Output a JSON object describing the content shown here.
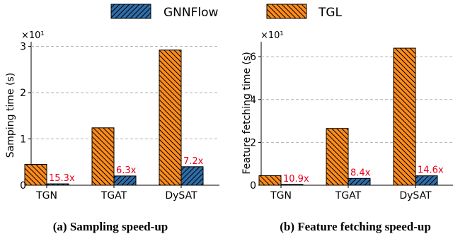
{
  "legend": [
    {
      "name": "GNNFlow",
      "color": "#2f6ea9",
      "hatch": "forward"
    },
    {
      "name": "TGL",
      "color": "#ff8c1a",
      "hatch": "back"
    }
  ],
  "chart_data": [
    {
      "type": "bar",
      "categories": [
        "TGN",
        "TGAT",
        "DySAT"
      ],
      "series": [
        {
          "name": "TGL",
          "values": [
            0.45,
            1.24,
            2.92
          ]
        },
        {
          "name": "GNNFlow",
          "values": [
            0.03,
            0.2,
            0.4
          ]
        }
      ],
      "annotations": [
        "15.3x",
        "6.3x",
        "7.2x"
      ],
      "annotation_color": "#e8001c",
      "ylabel": "Samping time (s)",
      "yticks": [
        0,
        1,
        2,
        3
      ],
      "multiplier": "×10¹",
      "ylim": [
        0,
        3.1
      ],
      "grid": "y-dashed",
      "caption": "(a) Sampling speed-up"
    },
    {
      "type": "bar",
      "categories": [
        "TGN",
        "TGAT",
        "DySAT"
      ],
      "series": [
        {
          "name": "TGL",
          "values": [
            0.45,
            2.65,
            6.4
          ]
        },
        {
          "name": "GNNFlow",
          "values": [
            0.04,
            0.32,
            0.44
          ]
        }
      ],
      "annotations": [
        "10.9x",
        "8.4x",
        "14.6x"
      ],
      "annotation_color": "#e8001c",
      "ylabel": "Feature fetching time (s)",
      "yticks": [
        0,
        2,
        4,
        6
      ],
      "multiplier": "×10¹",
      "ylim": [
        0,
        6.7
      ],
      "grid": "y-dashed",
      "caption": "(b) Feature fetching speed-up"
    }
  ]
}
